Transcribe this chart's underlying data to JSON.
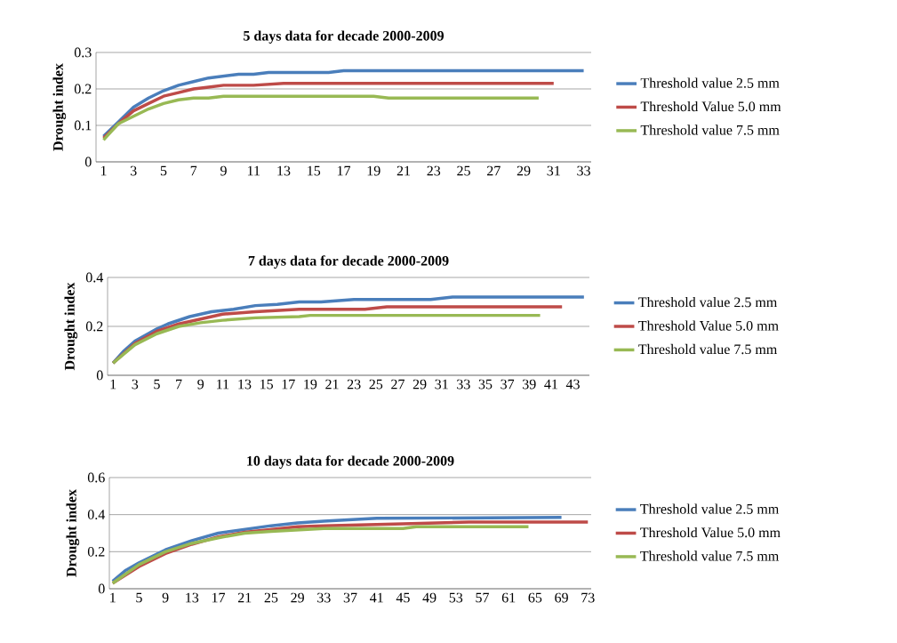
{
  "chart_data": [
    {
      "type": "line",
      "title": "5 days data for decade 2000-2009",
      "ylabel": "Drought index",
      "xlim": [
        0.5,
        33.5
      ],
      "xticks": [
        1,
        3,
        5,
        7,
        9,
        11,
        13,
        15,
        17,
        19,
        21,
        23,
        25,
        27,
        29,
        31,
        33
      ],
      "ylim": [
        0,
        0.3
      ],
      "yticks": [
        0,
        0.1,
        0.2,
        0.3
      ],
      "grid": "y",
      "legend": "right",
      "series": [
        {
          "name": "Threshold value 2.5 mm",
          "color": "#4a7ebb",
          "x": [
            1,
            2,
            3,
            4,
            5,
            6,
            7,
            8,
            9,
            10,
            11,
            12,
            13,
            16,
            17,
            33
          ],
          "values": [
            0.07,
            0.11,
            0.15,
            0.175,
            0.195,
            0.21,
            0.22,
            0.23,
            0.235,
            0.24,
            0.24,
            0.245,
            0.245,
            0.245,
            0.25,
            0.25
          ]
        },
        {
          "name": "Threshold Value 5.0 mm",
          "color": "#be4b48",
          "x": [
            1,
            2,
            3,
            4,
            5,
            6,
            7,
            8,
            9,
            11,
            13,
            31
          ],
          "values": [
            0.065,
            0.105,
            0.14,
            0.16,
            0.18,
            0.19,
            0.2,
            0.205,
            0.21,
            0.21,
            0.215,
            0.215
          ]
        },
        {
          "name": "Threshold value 7.5 mm",
          "color": "#98b954",
          "x": [
            1,
            2,
            3,
            4,
            5,
            6,
            7,
            8,
            9,
            19,
            20,
            30
          ],
          "values": [
            0.06,
            0.105,
            0.125,
            0.145,
            0.16,
            0.17,
            0.175,
            0.175,
            0.18,
            0.18,
            0.175,
            0.175
          ]
        }
      ]
    },
    {
      "type": "line",
      "title": "7 days data for decade 2000-2009",
      "ylabel": "Drought index",
      "xlim": [
        0.5,
        44.5
      ],
      "xticks": [
        1,
        3,
        5,
        7,
        9,
        11,
        13,
        15,
        17,
        19,
        21,
        23,
        25,
        27,
        29,
        31,
        33,
        35,
        37,
        39,
        41,
        43
      ],
      "ylim": [
        0,
        0.4
      ],
      "yticks": [
        0,
        0.2,
        0.4
      ],
      "grid": "y",
      "legend": "right",
      "series": [
        {
          "name": "Threshold value 2.5 mm",
          "color": "#4a7ebb",
          "x": [
            1,
            2,
            3,
            4,
            5,
            6,
            7,
            8,
            9,
            10,
            12,
            14,
            16,
            18,
            20,
            23,
            30,
            32,
            44
          ],
          "values": [
            0.05,
            0.1,
            0.14,
            0.165,
            0.19,
            0.21,
            0.225,
            0.24,
            0.25,
            0.26,
            0.27,
            0.285,
            0.29,
            0.3,
            0.3,
            0.31,
            0.31,
            0.32,
            0.32
          ]
        },
        {
          "name": "Threshold Value 5.0 mm",
          "color": "#be4b48",
          "x": [
            1,
            3,
            5,
            7,
            9,
            11,
            14,
            18,
            24,
            26,
            42
          ],
          "values": [
            0.05,
            0.13,
            0.18,
            0.21,
            0.23,
            0.25,
            0.26,
            0.27,
            0.27,
            0.28,
            0.28
          ]
        },
        {
          "name": "Threshold value 7.5 mm",
          "color": "#98b954",
          "x": [
            1,
            3,
            5,
            7,
            9,
            11,
            14,
            18,
            19,
            40
          ],
          "values": [
            0.05,
            0.125,
            0.17,
            0.2,
            0.215,
            0.225,
            0.235,
            0.24,
            0.245,
            0.245
          ]
        }
      ]
    },
    {
      "type": "line",
      "title": "10 days data for decade 2000-2009",
      "ylabel": "Drought index",
      "xlim": [
        0.5,
        73.5
      ],
      "xticks": [
        1,
        5,
        9,
        13,
        17,
        21,
        25,
        29,
        33,
        37,
        41,
        45,
        49,
        53,
        57,
        61,
        65,
        69,
        73
      ],
      "ylim": [
        0,
        0.6
      ],
      "yticks": [
        0,
        0.2,
        0.4,
        0.6
      ],
      "grid": "y",
      "legend": "right",
      "series": [
        {
          "name": "Threshold value 2.5 mm",
          "color": "#4a7ebb",
          "x": [
            1,
            3,
            5,
            9,
            13,
            17,
            21,
            25,
            29,
            33,
            41,
            69
          ],
          "values": [
            0.04,
            0.1,
            0.14,
            0.21,
            0.26,
            0.3,
            0.32,
            0.34,
            0.355,
            0.365,
            0.38,
            0.385
          ]
        },
        {
          "name": "Threshold Value 5.0 mm",
          "color": "#be4b48",
          "x": [
            1,
            5,
            9,
            13,
            17,
            21,
            25,
            29,
            33,
            45,
            55,
            73
          ],
          "values": [
            0.03,
            0.12,
            0.19,
            0.24,
            0.28,
            0.305,
            0.32,
            0.335,
            0.34,
            0.35,
            0.36,
            0.36
          ]
        },
        {
          "name": "Threshold value 7.5 mm",
          "color": "#98b954",
          "x": [
            1,
            5,
            9,
            13,
            17,
            21,
            25,
            33,
            45,
            47,
            64
          ],
          "values": [
            0.03,
            0.13,
            0.2,
            0.245,
            0.275,
            0.3,
            0.31,
            0.325,
            0.325,
            0.335,
            0.335
          ]
        }
      ]
    }
  ]
}
